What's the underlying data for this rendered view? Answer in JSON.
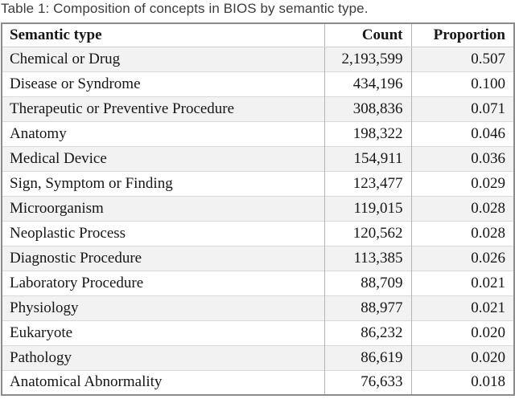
{
  "caption": "Table 1: Composition of concepts in BIOS by semantic type.",
  "chart_data": {
    "type": "table",
    "title": "Composition of concepts in BIOS by semantic type",
    "columns": [
      "Semantic type",
      "Count",
      "Proportion"
    ],
    "rows": [
      [
        "Chemical or Drug",
        "2,193,599",
        "0.507"
      ],
      [
        "Disease or Syndrome",
        "434,196",
        "0.100"
      ],
      [
        "Therapeutic or Preventive Procedure",
        "308,836",
        "0.071"
      ],
      [
        "Anatomy",
        "198,322",
        "0.046"
      ],
      [
        "Medical Device",
        "154,911",
        "0.036"
      ],
      [
        "Sign, Symptom or Finding",
        "123,477",
        "0.029"
      ],
      [
        "Microorganism",
        "119,015",
        "0.028"
      ],
      [
        "Neoplastic Process",
        "120,562",
        "0.028"
      ],
      [
        "Diagnostic Procedure",
        "113,385",
        "0.026"
      ],
      [
        "Laboratory Procedure",
        "88,709",
        "0.021"
      ],
      [
        "Physiology",
        "88,977",
        "0.021"
      ],
      [
        "Eukaryote",
        "86,232",
        "0.020"
      ],
      [
        "Pathology",
        "86,619",
        "0.020"
      ],
      [
        "Anatomical Abnormality",
        "76,633",
        "0.018"
      ]
    ]
  },
  "colors": {
    "stripe_row": "#f2f2f2",
    "outer_border": "#8b8b8b",
    "column_separator": "#b4b4b4",
    "row_separator": "#dadada",
    "caption_text": "#3c3c3c",
    "table_text": "#161616"
  }
}
